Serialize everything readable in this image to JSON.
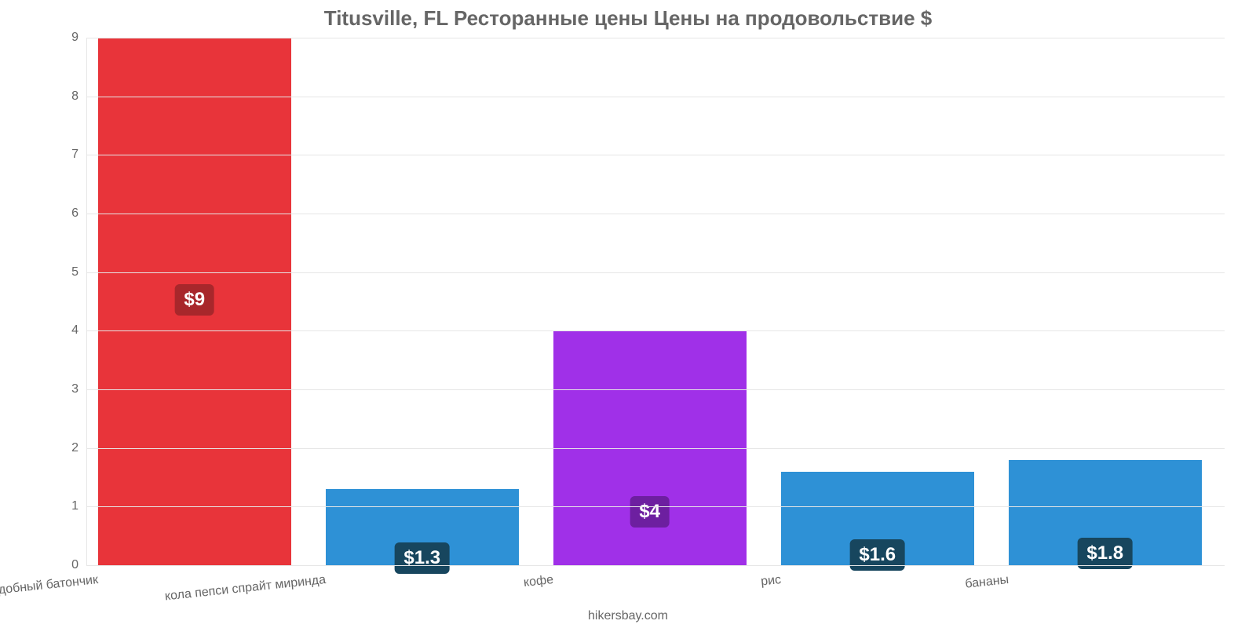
{
  "chart": {
    "type": "bar",
    "title": "Titusville, FL Ресторанные цены Цены на продовольствие $",
    "title_color": "#666666",
    "title_fontsize": 26,
    "background_color": "#ffffff",
    "grid_color": "#e6e6e6",
    "axis_label_color": "#666666",
    "axis_label_fontsize": 16,
    "ylim": [
      0,
      9
    ],
    "yticks": [
      0,
      1,
      2,
      3,
      4,
      5,
      6,
      7,
      8,
      9
    ],
    "bar_width_pct": 17,
    "gap_pct": 3,
    "categories": [
      "mac burger king или подобный батончик",
      "кола пепси спрайт миринда",
      "кофе",
      "рис",
      "бананы"
    ],
    "values": [
      9,
      1.3,
      4,
      1.6,
      1.8
    ],
    "value_labels": [
      "$9",
      "$1.3",
      "$4",
      "$1.6",
      "$1.8"
    ],
    "bar_colors": [
      "#e8343a",
      "#2e91d6",
      "#a030e8",
      "#2e91d6",
      "#2e91d6"
    ],
    "value_label_bg": [
      "#a8272b",
      "#17465e",
      "#6d1fa0",
      "#17465e",
      "#17465e"
    ],
    "value_label_color": "#ffffff",
    "value_label_fontsize": 24,
    "x_label_rotation_deg": -6,
    "credit": "hikersbay.com"
  }
}
